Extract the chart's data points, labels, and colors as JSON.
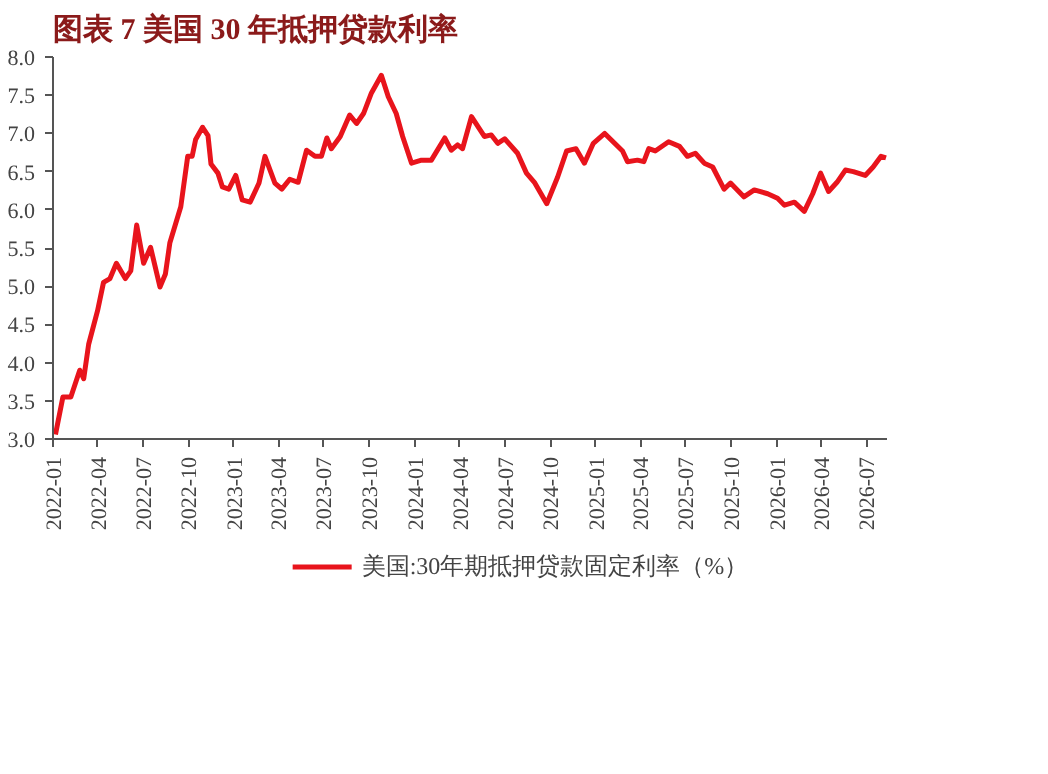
{
  "chart_data": {
    "type": "line",
    "title": "图表 7   美国 30 年抵押贷款利率",
    "x": [
      "2022-01-06",
      "2022-01-21",
      "2022-02-06",
      "2022-02-24",
      "2022-03-04",
      "2022-03-14",
      "2022-04-01",
      "2022-04-13",
      "2022-04-26",
      "2022-05-09",
      "2022-05-27",
      "2022-06-07",
      "2022-06-19",
      "2022-07-03",
      "2022-07-17",
      "2022-08-05",
      "2022-08-16",
      "2022-08-25",
      "2022-09-16",
      "2022-09-30",
      "2022-10-09",
      "2022-10-16",
      "2022-10-30",
      "2022-11-10",
      "2022-11-16",
      "2022-11-30",
      "2022-12-09",
      "2022-12-22",
      "2023-01-05",
      "2023-01-18",
      "2023-02-03",
      "2023-02-21",
      "2023-03-05",
      "2023-03-25",
      "2023-04-08",
      "2023-04-24",
      "2023-05-11",
      "2023-05-28",
      "2023-06-14",
      "2023-06-27",
      "2023-07-08",
      "2023-07-17",
      "2023-08-04",
      "2023-08-23",
      "2023-09-06",
      "2023-09-20",
      "2023-10-06",
      "2023-10-26",
      "2023-11-09",
      "2023-11-25",
      "2023-12-08",
      "2023-12-26",
      "2024-01-15",
      "2024-02-04",
      "2024-03-02",
      "2024-03-15",
      "2024-03-28",
      "2024-04-07",
      "2024-04-25",
      "2024-05-21",
      "2024-06-04",
      "2024-06-17",
      "2024-07-01",
      "2024-07-27",
      "2024-08-14",
      "2024-08-30",
      "2024-09-24",
      "2024-10-16",
      "2024-11-03",
      "2024-11-22",
      "2024-12-09",
      "2024-12-27",
      "2025-01-19",
      "2025-02-08",
      "2025-02-24",
      "2025-03-06",
      "2025-03-26",
      "2025-04-08",
      "2025-04-18",
      "2025-05-01",
      "2025-05-28",
      "2025-06-19",
      "2025-07-05",
      "2025-07-21",
      "2025-08-08",
      "2025-08-25",
      "2025-09-17",
      "2025-09-30",
      "2025-10-27",
      "2025-11-17",
      "2025-12-14",
      "2026-01-03",
      "2026-01-17",
      "2026-02-06",
      "2026-02-26",
      "2026-03-15",
      "2026-03-31",
      "2026-04-16",
      "2026-05-03",
      "2026-05-20",
      "2026-06-05",
      "2026-06-29",
      "2026-07-15",
      "2026-07-31",
      "2026-08-10"
    ],
    "series": [
      {
        "name": "美国:30年期抵押贷款固定利率（%）",
        "color": "#e8141c",
        "values": [
          3.06,
          3.55,
          3.55,
          3.9,
          3.79,
          4.24,
          4.68,
          5.05,
          5.1,
          5.3,
          5.1,
          5.2,
          5.8,
          5.3,
          5.51,
          4.99,
          5.16,
          5.57,
          6.04,
          6.7,
          6.7,
          6.92,
          7.08,
          6.97,
          6.6,
          6.48,
          6.3,
          6.27,
          6.45,
          6.13,
          6.1,
          6.35,
          6.7,
          6.35,
          6.27,
          6.4,
          6.36,
          6.78,
          6.7,
          6.7,
          6.94,
          6.8,
          6.96,
          7.24,
          7.13,
          7.26,
          7.53,
          7.76,
          7.48,
          7.26,
          6.96,
          6.61,
          6.65,
          6.65,
          6.94,
          6.78,
          6.85,
          6.8,
          7.22,
          6.96,
          6.98,
          6.87,
          6.93,
          6.74,
          6.48,
          6.36,
          6.08,
          6.43,
          6.77,
          6.8,
          6.61,
          6.87,
          7.0,
          6.87,
          6.77,
          6.63,
          6.65,
          6.63,
          6.8,
          6.77,
          6.89,
          6.83,
          6.7,
          6.74,
          6.61,
          6.56,
          6.27,
          6.35,
          6.17,
          6.26,
          6.21,
          6.15,
          6.06,
          6.1,
          5.98,
          6.21,
          6.48,
          6.24,
          6.36,
          6.52,
          6.5,
          6.45,
          6.56,
          6.7,
          6.68
        ]
      }
    ],
    "xlim": [
      "2022-01-01",
      "2026-08-12"
    ],
    "xticks": [
      "2022-01",
      "2022-04",
      "2022-07",
      "2022-10",
      "2023-01",
      "2023-04",
      "2023-07",
      "2023-10",
      "2024-01",
      "2024-04",
      "2024-07",
      "2024-10",
      "2025-01",
      "2025-04",
      "2025-07",
      "2025-10",
      "2026-01",
      "2026-04",
      "2026-07"
    ],
    "ylim": [
      3.0,
      8.0
    ],
    "yticks": [
      {
        "value": 3.0,
        "label": "3.0"
      },
      {
        "value": 3.5,
        "label": "3.5"
      },
      {
        "value": 4.0,
        "label": "4.0"
      },
      {
        "value": 4.5,
        "label": "4.5"
      },
      {
        "value": 5.0,
        "label": "5.0"
      },
      {
        "value": 5.5,
        "label": "5.5"
      },
      {
        "value": 6.0,
        "label": "6.0"
      },
      {
        "value": 6.5,
        "label": "6.5"
      },
      {
        "value": 7.0,
        "label": "7.0"
      },
      {
        "value": 7.5,
        "label": "7.5"
      },
      {
        "value": 8.0,
        "label": "8.0"
      }
    ],
    "grid": false,
    "legend": "bottom",
    "marker": "none",
    "line_style": "solid"
  }
}
